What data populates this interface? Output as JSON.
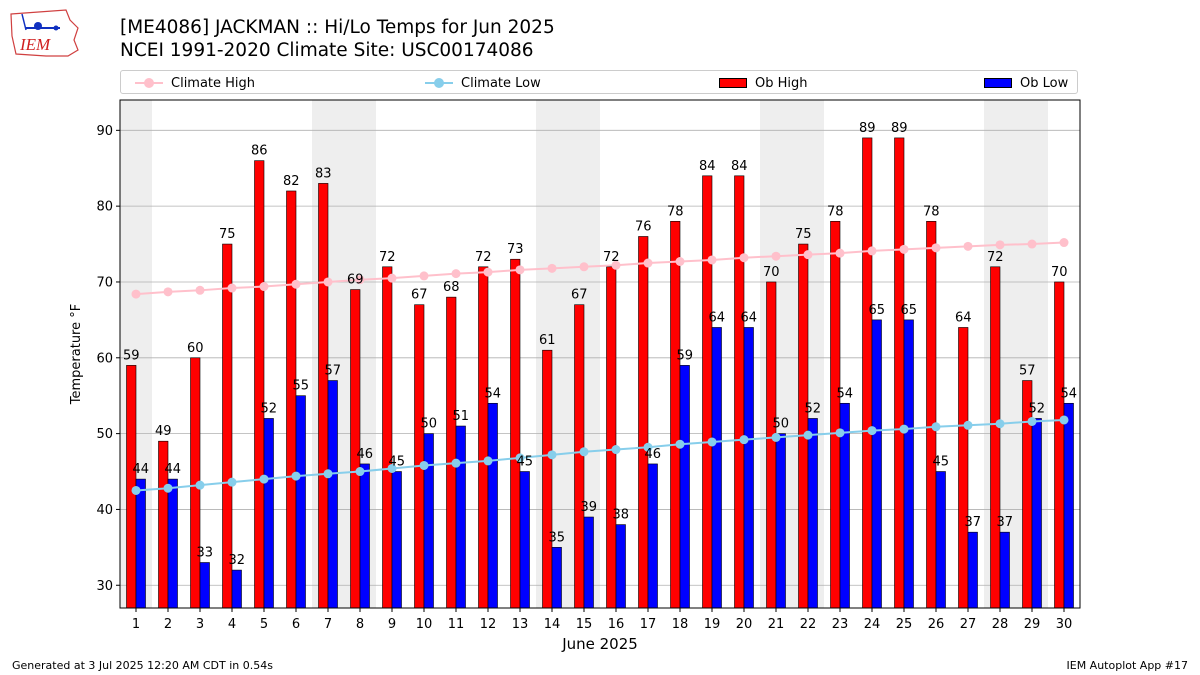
{
  "header": {
    "title_line1": "[ME4086] JACKMAN :: Hi/Lo Temps for Jun 2025",
    "title_line2": "NCEI 1991-2020 Climate Site: USC00174086",
    "logo_text": "IEM"
  },
  "legend": {
    "climate_high": "Climate High",
    "climate_low": "Climate Low",
    "ob_high": "Ob High",
    "ob_low": "Ob Low"
  },
  "footer": {
    "generated": "Generated at 3 Jul 2025 12:20 AM CDT in 0.54s",
    "app": "IEM Autoplot App #17"
  },
  "colors": {
    "ob_high": "#ff0000",
    "ob_low": "#0000ff",
    "climate_high": "#ffc0cb",
    "climate_low": "#87ceeb",
    "weekend_band": "#eeeeee",
    "gridline": "#b0b0b0"
  },
  "chart_data": {
    "type": "bar",
    "title": "[ME4086] JACKMAN :: Hi/Lo Temps for Jun 2025",
    "subtitle": "NCEI 1991-2020 Climate Site: USC00174086",
    "xlabel": "June 2025",
    "ylabel": "Temperature °F",
    "ylim": [
      27,
      94
    ],
    "yticks": [
      30,
      40,
      50,
      60,
      70,
      80,
      90
    ],
    "grid": "horizontal",
    "legend_position": "top",
    "categories": [
      "1",
      "2",
      "3",
      "4",
      "5",
      "6",
      "7",
      "8",
      "9",
      "10",
      "11",
      "12",
      "13",
      "14",
      "15",
      "16",
      "17",
      "18",
      "19",
      "20",
      "21",
      "22",
      "23",
      "24",
      "25",
      "26",
      "27",
      "28",
      "29",
      "30"
    ],
    "weekend_days": [
      1,
      7,
      8,
      14,
      15,
      21,
      22,
      28,
      29
    ],
    "series": [
      {
        "name": "Ob High",
        "type": "bar",
        "values": [
          59,
          49,
          60,
          75,
          86,
          82,
          83,
          69,
          72,
          67,
          68,
          72,
          73,
          61,
          67,
          72,
          76,
          78,
          84,
          84,
          70,
          75,
          78,
          89,
          89,
          78,
          64,
          72,
          57,
          70
        ]
      },
      {
        "name": "Ob Low",
        "type": "bar",
        "values": [
          44,
          44,
          33,
          32,
          52,
          55,
          57,
          46,
          45,
          50,
          51,
          54,
          45,
          35,
          39,
          38,
          46,
          59,
          64,
          64,
          50,
          52,
          54,
          65,
          65,
          45,
          37,
          37,
          52,
          54
        ]
      },
      {
        "name": "Climate High",
        "type": "line",
        "values": [
          68.4,
          68.7,
          68.9,
          69.2,
          69.4,
          69.7,
          70.0,
          70.3,
          70.5,
          70.8,
          71.1,
          71.3,
          71.6,
          71.8,
          72.0,
          72.2,
          72.5,
          72.7,
          72.9,
          73.2,
          73.4,
          73.6,
          73.8,
          74.1,
          74.3,
          74.5,
          74.7,
          74.9,
          75.0,
          75.2
        ]
      },
      {
        "name": "Climate Low",
        "type": "line",
        "values": [
          42.5,
          42.8,
          43.2,
          43.6,
          44.0,
          44.4,
          44.7,
          45.0,
          45.4,
          45.8,
          46.1,
          46.4,
          46.8,
          47.2,
          47.6,
          47.9,
          48.2,
          48.6,
          48.9,
          49.2,
          49.5,
          49.8,
          50.1,
          50.4,
          50.6,
          50.9,
          51.1,
          51.3,
          51.6,
          51.8
        ]
      }
    ]
  }
}
